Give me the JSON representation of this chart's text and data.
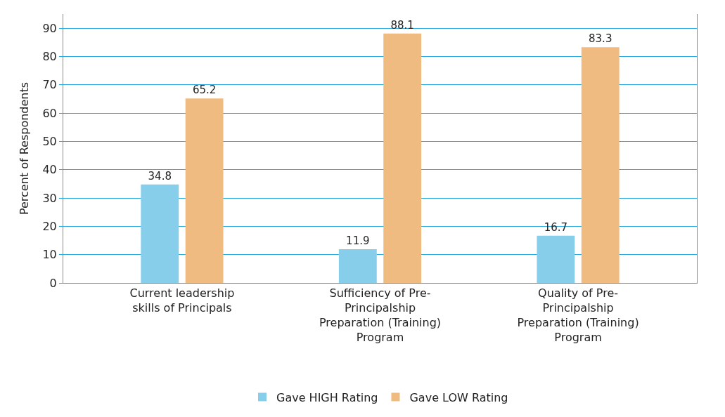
{
  "chart_data": {
    "type": "bar",
    "ylabel": "Percent of Respondents",
    "categories": [
      "Current leadership skills of Principals",
      "Sufficiency of Pre-Principalship Preparation (Training) Program",
      "Quality of Pre-Principalship Preparation (Training) Program"
    ],
    "series": [
      {
        "name": "Gave HIGH Rating",
        "color": "#87ceeb",
        "values": [
          34.8,
          11.9,
          16.7
        ]
      },
      {
        "name": "Gave LOW Rating",
        "color": "#f0bb80",
        "values": [
          65.2,
          88.1,
          83.3
        ]
      }
    ],
    "ylim": [
      0,
      95
    ],
    "yticks": [
      0,
      10,
      20,
      30,
      40,
      50,
      60,
      70,
      80,
      90
    ],
    "grid": "y",
    "legend": "bottom",
    "data_labels": true
  }
}
